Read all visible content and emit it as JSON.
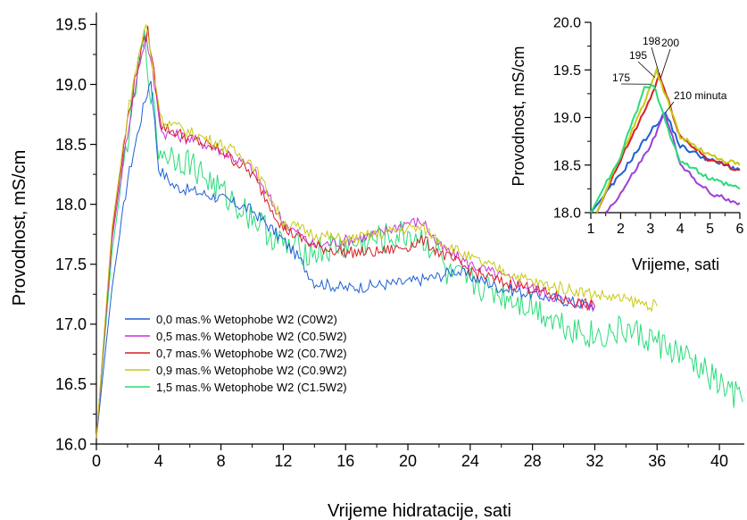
{
  "chart_data": [
    {
      "type": "line",
      "xlabel": "Vrijeme hidratacije, sati",
      "ylabel": "Provodnost, mS/cm",
      "xlim": [
        0,
        41.6
      ],
      "ylim": [
        16.0,
        19.6
      ],
      "xticks": [
        "0",
        "4",
        "8",
        "12",
        "16",
        "20",
        "24",
        "28",
        "32",
        "36",
        "40"
      ],
      "yticks": [
        "16.0",
        "16.5",
        "17.0",
        "17.5",
        "18.0",
        "18.5",
        "19.0",
        "19.5"
      ],
      "legend_position": "lower-left",
      "series": [
        {
          "name": "0,0 mas.% Wetophobe W2 (C0W2)",
          "color": "#1f5fd6",
          "points": [
            [
              0,
              16.05
            ],
            [
              1,
              17.3
            ],
            [
              2,
              18.2
            ],
            [
              3,
              18.8
            ],
            [
              3.5,
              19.05
            ],
            [
              4,
              18.3
            ],
            [
              5,
              18.15
            ],
            [
              8,
              18.05
            ],
            [
              10,
              17.95
            ],
            [
              12,
              17.7
            ],
            [
              13,
              17.55
            ],
            [
              14,
              17.35
            ],
            [
              16,
              17.3
            ],
            [
              20,
              17.35
            ],
            [
              22,
              17.4
            ],
            [
              23,
              17.45
            ],
            [
              24,
              17.4
            ],
            [
              26,
              17.3
            ],
            [
              28,
              17.25
            ],
            [
              30,
              17.2
            ],
            [
              32,
              17.15
            ]
          ]
        },
        {
          "name": "0,5 mas.% Wetophobe W2 (C0.5W2)",
          "color": "#c832d8",
          "points": [
            [
              0,
              16.05
            ],
            [
              1,
              17.7
            ],
            [
              2,
              18.6
            ],
            [
              2.8,
              19.2
            ],
            [
              3.2,
              19.4
            ],
            [
              3.6,
              19.1
            ],
            [
              4.2,
              18.6
            ],
            [
              6,
              18.55
            ],
            [
              8,
              18.45
            ],
            [
              10,
              18.3
            ],
            [
              12,
              17.85
            ],
            [
              14,
              17.65
            ],
            [
              16,
              17.7
            ],
            [
              18,
              17.75
            ],
            [
              20,
              17.85
            ],
            [
              21,
              17.85
            ],
            [
              22,
              17.65
            ],
            [
              24,
              17.5
            ],
            [
              26,
              17.4
            ],
            [
              28,
              17.3
            ],
            [
              30,
              17.2
            ],
            [
              32,
              17.15
            ]
          ]
        },
        {
          "name": "0,7 mas.% Wetophobe W2 (C0.7W2)",
          "color": "#d81e28",
          "points": [
            [
              0,
              16.05
            ],
            [
              1,
              17.75
            ],
            [
              2,
              18.7
            ],
            [
              2.8,
              19.25
            ],
            [
              3.3,
              19.45
            ],
            [
              3.7,
              19.1
            ],
            [
              4.2,
              18.65
            ],
            [
              6,
              18.55
            ],
            [
              8,
              18.45
            ],
            [
              10,
              18.25
            ],
            [
              12,
              17.8
            ],
            [
              14,
              17.65
            ],
            [
              16,
              17.6
            ],
            [
              18,
              17.6
            ],
            [
              20,
              17.65
            ],
            [
              21,
              17.7
            ],
            [
              22,
              17.6
            ],
            [
              24,
              17.45
            ],
            [
              26,
              17.35
            ],
            [
              28,
              17.3
            ],
            [
              30,
              17.2
            ],
            [
              32,
              17.15
            ]
          ]
        },
        {
          "name": "0,9 mas.% Wetophobe W2 (C0.9W2)",
          "color": "#c8c814",
          "points": [
            [
              0,
              16.05
            ],
            [
              1,
              17.8
            ],
            [
              2,
              18.75
            ],
            [
              2.8,
              19.3
            ],
            [
              3.2,
              19.5
            ],
            [
              3.6,
              19.15
            ],
            [
              4.2,
              18.7
            ],
            [
              6,
              18.6
            ],
            [
              8,
              18.5
            ],
            [
              10,
              18.35
            ],
            [
              12,
              17.85
            ],
            [
              14,
              17.75
            ],
            [
              16,
              17.7
            ],
            [
              18,
              17.75
            ],
            [
              20,
              17.8
            ],
            [
              21,
              17.8
            ],
            [
              22,
              17.7
            ],
            [
              24,
              17.55
            ],
            [
              26,
              17.45
            ],
            [
              28,
              17.35
            ],
            [
              30,
              17.3
            ],
            [
              32,
              17.25
            ],
            [
              34,
              17.2
            ],
            [
              36,
              17.15
            ]
          ]
        },
        {
          "name": "1,5 mas.% Wetophobe W2 (C1.5W2)",
          "color": "#28dc78",
          "points": [
            [
              0,
              16.05
            ],
            [
              1,
              17.6
            ],
            [
              2,
              18.55
            ],
            [
              2.8,
              19.2
            ],
            [
              3.1,
              19.35
            ],
            [
              3.5,
              18.95
            ],
            [
              4,
              18.45
            ],
            [
              6,
              18.35
            ],
            [
              8,
              18.1
            ],
            [
              10,
              17.9
            ],
            [
              12,
              17.65
            ],
            [
              14,
              17.6
            ],
            [
              16,
              17.65
            ],
            [
              18,
              17.7
            ],
            [
              20,
              17.75
            ],
            [
              21,
              17.7
            ],
            [
              22,
              17.6
            ],
            [
              22.5,
              17.4
            ],
            [
              24,
              17.35
            ],
            [
              26,
              17.25
            ],
            [
              28,
              17.15
            ],
            [
              30,
              17.0
            ],
            [
              32,
              16.9
            ],
            [
              34,
              16.95
            ],
            [
              36,
              16.85
            ],
            [
              38,
              16.7
            ],
            [
              40,
              16.5
            ],
            [
              41.5,
              16.35
            ]
          ]
        }
      ]
    },
    {
      "type": "line",
      "xlabel": "Vrijeme, sati",
      "ylabel": "Provodnost, mS/cm",
      "xlim": [
        1,
        6
      ],
      "ylim": [
        18.0,
        20.0
      ],
      "xticks": [
        "1",
        "2",
        "3",
        "4",
        "5",
        "6"
      ],
      "yticks": [
        "18.0",
        "18.5",
        "19.0",
        "19.5",
        "20.0"
      ],
      "annotations": [
        {
          "text": "175",
          "x": 3.0,
          "y": 19.35
        },
        {
          "text": "195",
          "x": 3.15,
          "y": 19.42
        },
        {
          "text": "198",
          "x": 3.3,
          "y": 19.45
        },
        {
          "text": "200",
          "x": 3.35,
          "y": 19.42
        },
        {
          "text": "210 minuta",
          "x": 3.5,
          "y": 19.05
        }
      ],
      "series": [
        {
          "color": "#1f5fd6",
          "points": [
            [
              1,
              18.0
            ],
            [
              2,
              18.4
            ],
            [
              3,
              18.85
            ],
            [
              3.5,
              19.05
            ],
            [
              4,
              18.7
            ],
            [
              5,
              18.55
            ],
            [
              6,
              18.45
            ]
          ]
        },
        {
          "color": "#9b3fd8",
          "points": [
            [
              1.5,
              18.0
            ],
            [
              2,
              18.2
            ],
            [
              3,
              18.7
            ],
            [
              3.5,
              19.05
            ],
            [
              4,
              18.5
            ],
            [
              5,
              18.2
            ],
            [
              6,
              18.1
            ]
          ]
        },
        {
          "color": "#d81e28",
          "points": [
            [
              1.2,
              18.0
            ],
            [
              2,
              18.55
            ],
            [
              3,
              19.2
            ],
            [
              3.3,
              19.45
            ],
            [
              4,
              18.8
            ],
            [
              5,
              18.55
            ],
            [
              6,
              18.45
            ]
          ]
        },
        {
          "color": "#c8c814",
          "points": [
            [
              1.2,
              18.0
            ],
            [
              2,
              18.6
            ],
            [
              3,
              19.3
            ],
            [
              3.2,
              19.5
            ],
            [
              4,
              18.8
            ],
            [
              5,
              18.6
            ],
            [
              6,
              18.5
            ]
          ]
        },
        {
          "color": "#28dc78",
          "points": [
            [
              1,
              18.0
            ],
            [
              2,
              18.6
            ],
            [
              2.8,
              19.3
            ],
            [
              3.1,
              19.35
            ],
            [
              3.5,
              18.95
            ],
            [
              4,
              18.55
            ],
            [
              5,
              18.35
            ],
            [
              6,
              18.25
            ]
          ]
        }
      ]
    }
  ]
}
